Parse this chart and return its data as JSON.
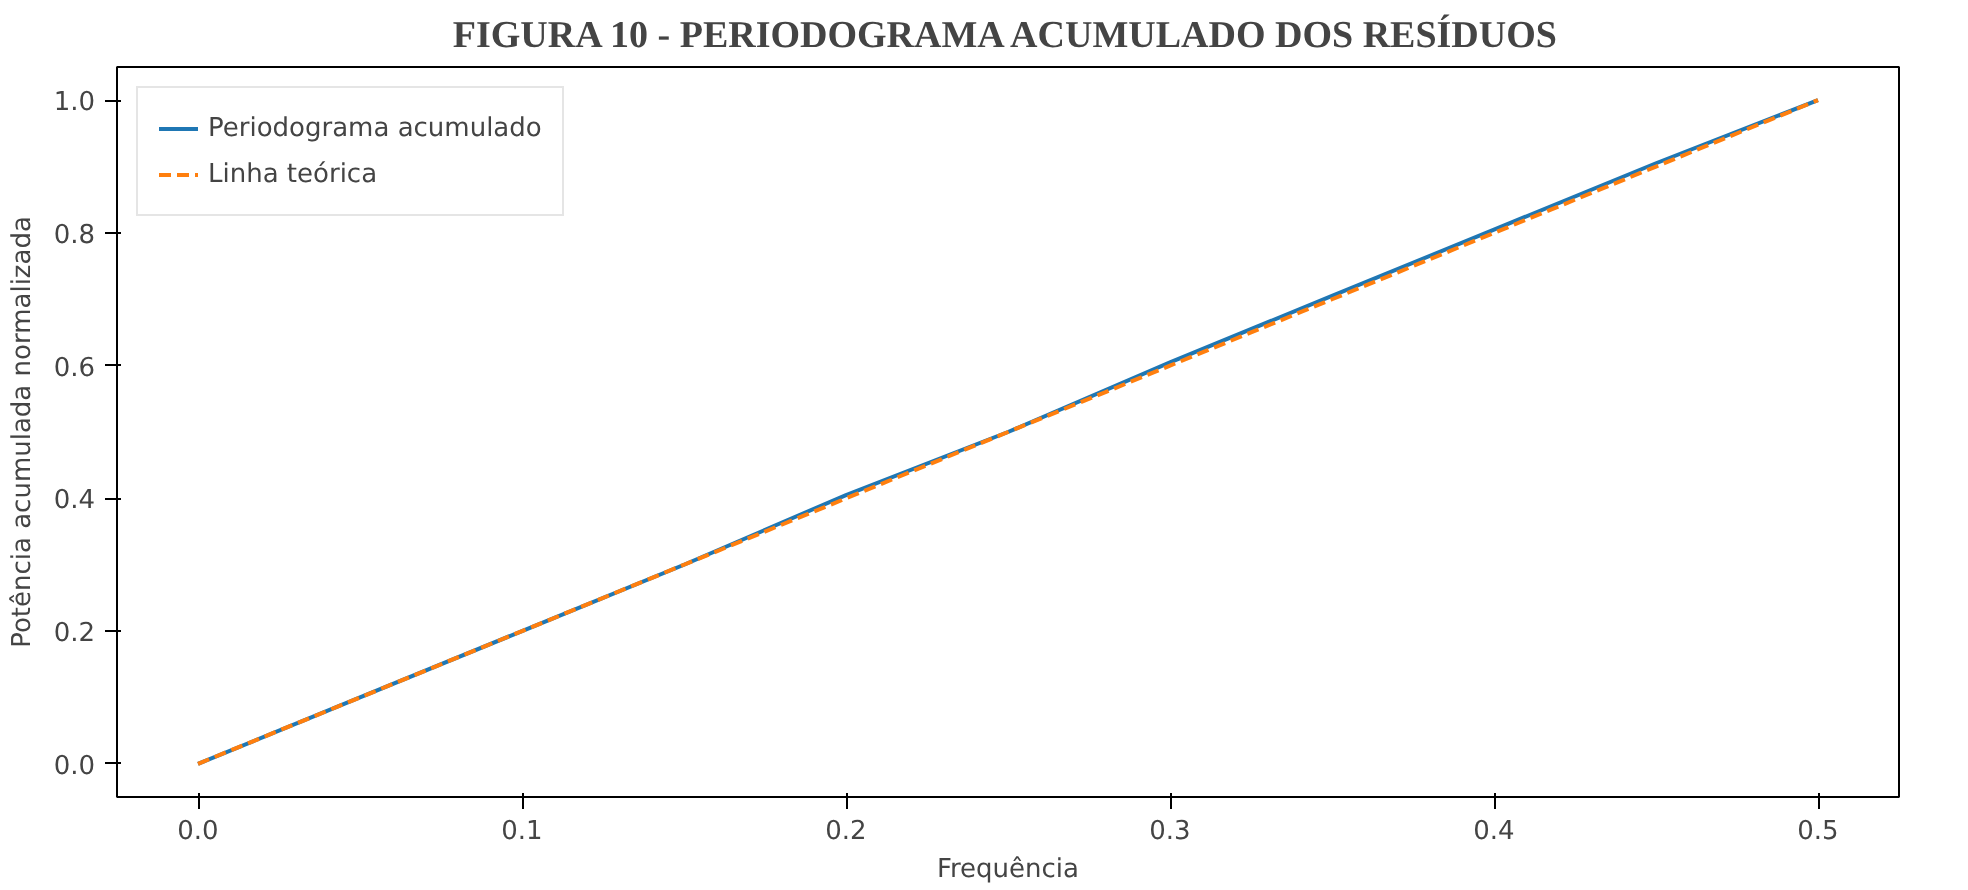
{
  "chart_data": {
    "type": "line",
    "title": "FIGURA 10 - PERIODOGRAMA ACUMULADO DOS RESÍDUOS",
    "xlabel": "Frequência",
    "ylabel": "Potência acumulada normalizada",
    "x": [
      0,
      0.05,
      0.1,
      0.15,
      0.2,
      0.25,
      0.3,
      0.35,
      0.4,
      0.45,
      0.5
    ],
    "series": [
      {
        "name": "Periodograma acumulado",
        "color": "#1f77b4",
        "line_style": "solid",
        "values": [
          0,
          0.1,
          0.2,
          0.3,
          0.405,
          0.5,
          0.605,
          0.705,
          0.805,
          0.905,
          1.0
        ]
      },
      {
        "name": "Linha teórica",
        "color": "#ff7f0e",
        "line_style": "dashed",
        "values": [
          0,
          0.1,
          0.2,
          0.3,
          0.4,
          0.5,
          0.6,
          0.7,
          0.8,
          0.9,
          1.0
        ]
      }
    ],
    "xlim": [
      -0.025,
      0.525
    ],
    "ylim": [
      -0.05,
      1.05
    ],
    "xticks": [
      "0.0",
      0.1,
      0.2,
      0.3,
      0.4,
      0.5
    ],
    "yticks": [
      {
        "value": 0,
        "label": "0.0"
      },
      0.2,
      0.4,
      0.6,
      0.8,
      {
        "value": 1,
        "label": "1.0"
      }
    ],
    "grid": false,
    "legend": "top left"
  }
}
